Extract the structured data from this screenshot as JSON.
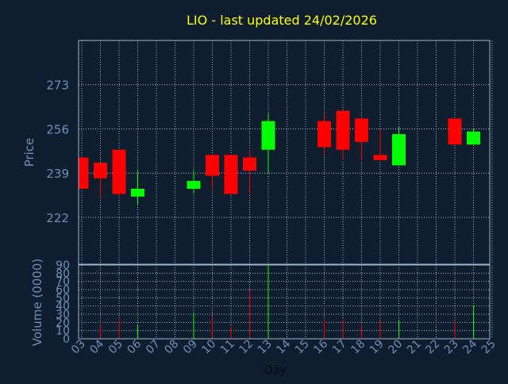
{
  "colors": {
    "background": "#0f1e2e",
    "title": "#ffff00",
    "axis_text": "#6f8fb8",
    "frame": "#9db4cf",
    "grid": "#9db4cf",
    "up": "#00ff00",
    "down": "#ff0000"
  },
  "chart_data": {
    "type": "candlestick",
    "title": "LIO - last updated 24/02/2026",
    "xlabel": "Day",
    "price_panel": {
      "ylabel": "Price",
      "yticks": [
        222,
        239,
        256,
        273
      ],
      "ylim": [
        204,
        290
      ],
      "grid": true
    },
    "volume_panel": {
      "ylabel": "Volume (0000)",
      "yticks": [
        0,
        10,
        20,
        30,
        40,
        50,
        60,
        70,
        80,
        90
      ],
      "ylim": [
        0,
        90
      ],
      "grid": true
    },
    "x_ticks": [
      "03",
      "04",
      "05",
      "06",
      "07",
      "08",
      "09",
      "10",
      "11",
      "12",
      "13",
      "14",
      "15",
      "16",
      "17",
      "18",
      "19",
      "20",
      "21",
      "22",
      "23",
      "24",
      "25"
    ],
    "candles": [
      {
        "day": "03",
        "open": 245,
        "close": 233,
        "high": 245,
        "low": 233,
        "volume": 0
      },
      {
        "day": "04",
        "open": 243,
        "close": 237,
        "high": 243,
        "low": 230,
        "volume": 17
      },
      {
        "day": "05",
        "open": 248,
        "close": 231,
        "high": 248,
        "low": 230,
        "volume": 24
      },
      {
        "day": "06",
        "open": 230,
        "close": 233,
        "high": 240,
        "low": 227,
        "volume": 17
      },
      {
        "day": "09",
        "open": 233,
        "close": 236,
        "high": 240,
        "low": 231,
        "volume": 32
      },
      {
        "day": "10",
        "open": 246,
        "close": 238,
        "high": 246,
        "low": 233,
        "volume": 28
      },
      {
        "day": "11",
        "open": 246,
        "close": 231,
        "high": 246,
        "low": 231,
        "volume": 15
      },
      {
        "day": "12",
        "open": 245,
        "close": 240,
        "high": 248,
        "low": 231,
        "volume": 60
      },
      {
        "day": "13",
        "open": 248,
        "close": 259,
        "high": 262,
        "low": 239,
        "volume": 90
      },
      {
        "day": "16",
        "open": 259,
        "close": 249,
        "high": 262,
        "low": 246,
        "volume": 23
      },
      {
        "day": "17",
        "open": 263,
        "close": 248,
        "high": 263,
        "low": 244,
        "volume": 24
      },
      {
        "day": "18",
        "open": 260,
        "close": 251,
        "high": 260,
        "low": 244,
        "volume": 18
      },
      {
        "day": "19",
        "open": 246,
        "close": 244,
        "high": 256,
        "low": 244,
        "volume": 22
      },
      {
        "day": "20",
        "open": 242,
        "close": 254,
        "high": 257,
        "low": 242,
        "volume": 22
      },
      {
        "day": "23",
        "open": 260,
        "close": 250,
        "high": 260,
        "low": 250,
        "volume": 22
      },
      {
        "day": "24",
        "open": 250,
        "close": 255,
        "high": 256,
        "low": 250,
        "volume": 41
      }
    ]
  }
}
